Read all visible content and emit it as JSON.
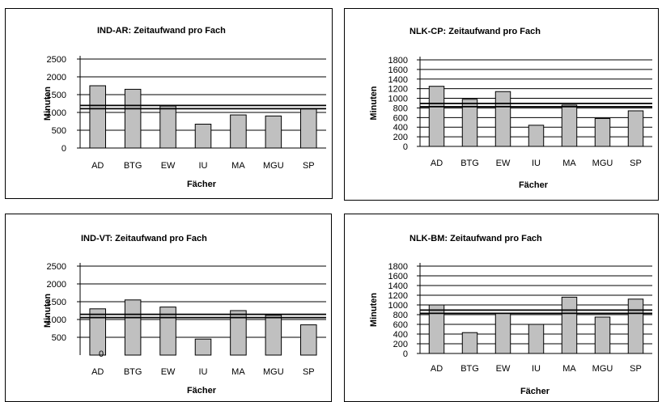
{
  "chart_data": [
    {
      "type": "bar",
      "title": "IND-AR: Zeitaufwand pro Fach",
      "xlabel": "Fächer",
      "ylabel": "Minuten",
      "categories": [
        "AD",
        "BTG",
        "EW",
        "IU",
        "MA",
        "MGU",
        "SP"
      ],
      "values": [
        1750,
        1650,
        1180,
        670,
        930,
        900,
        1100
      ],
      "yticks": [
        "2500",
        "2000",
        "1500",
        "1000",
        "500",
        "0"
      ],
      "ylim": [
        0,
        2500
      ],
      "grid": true,
      "reference_line": 1150,
      "bar_color": "#c0c0c0"
    },
    {
      "type": "bar",
      "title": "NLK-CP: Zeitaufwand pro Fach",
      "xlabel": "Fächer",
      "ylabel": "Minuten",
      "categories": [
        "AD",
        "BTG",
        "EW",
        "IU",
        "MA",
        "MGU",
        "SP"
      ],
      "values": [
        1250,
        980,
        1140,
        440,
        860,
        580,
        740
      ],
      "yticks": [
        "1800",
        "1600",
        "1400",
        "1200",
        "1000",
        "800",
        "600",
        "400",
        "200",
        "0"
      ],
      "ylim": [
        0,
        1800
      ],
      "grid": true,
      "reference_line": 860,
      "bar_color": "#c0c0c0"
    },
    {
      "type": "bar",
      "title": "IND-VT: Zeitaufwand pro Fach",
      "xlabel": "Fächer",
      "ylabel": "Minuten",
      "categories": [
        "AD",
        "BTG",
        "EW",
        "IU",
        "MA",
        "MGU",
        "SP"
      ],
      "values": [
        1300,
        1550,
        1350,
        450,
        1250,
        1120,
        850
      ],
      "yticks": [
        "2500",
        "2000",
        "1500",
        "1000",
        "500"
      ],
      "ylim": [
        0,
        2500
      ],
      "grid": true,
      "reference_line": 1100,
      "bar_color": "#c0c0c0",
      "annotation": "0"
    },
    {
      "type": "bar",
      "title": "NLK-BM: Zeitaufwand pro Fach",
      "xlabel": "Fächer",
      "ylabel": "Minuten",
      "categories": [
        "AD",
        "BTG",
        "EW",
        "IU",
        "MA",
        "MGU",
        "SP"
      ],
      "values": [
        1000,
        430,
        830,
        600,
        1160,
        750,
        1120
      ],
      "yticks": [
        "1800",
        "1600",
        "1400",
        "1200",
        "1000",
        "800",
        "600",
        "400",
        "200",
        "0"
      ],
      "ylim": [
        0,
        1800
      ],
      "grid": true,
      "reference_line": 860,
      "bar_color": "#c0c0c0"
    }
  ]
}
